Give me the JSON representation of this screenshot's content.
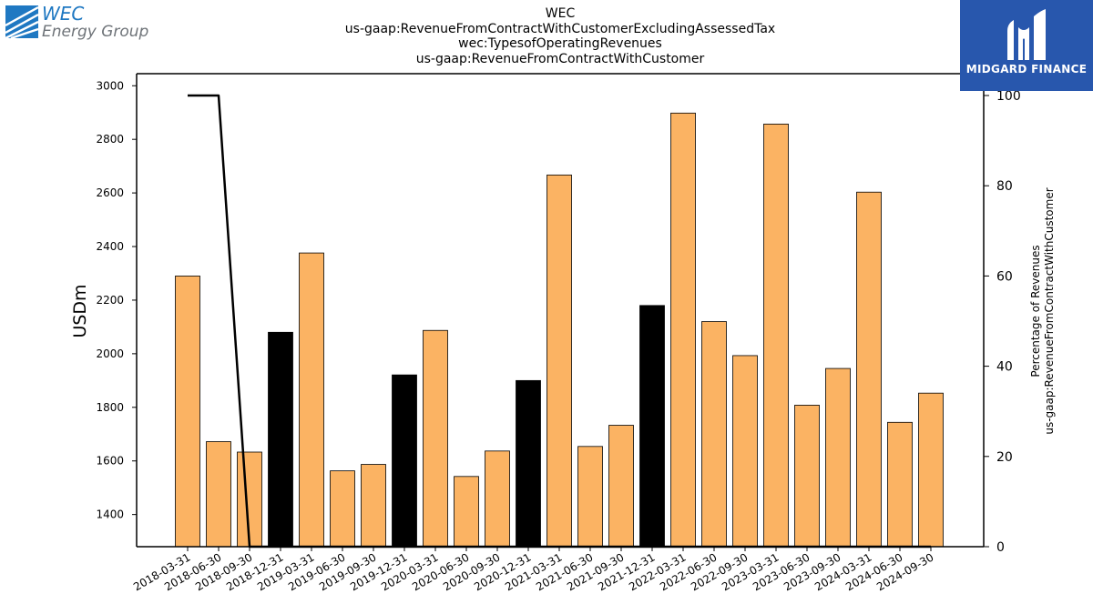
{
  "header": {
    "title_lines": [
      "WEC",
      "us-gaap:RevenueFromContractWithCustomerExcludingAssessedTax",
      "wec:TypesofOperatingRevenues",
      "us-gaap:RevenueFromContractWithCustomer"
    ]
  },
  "logo_left": {
    "line1": "WEC",
    "line2": "Energy Group",
    "mark_icon": "wec-energy-group-logo-icon",
    "color": "#1f78c2"
  },
  "logo_right": {
    "text": "MIDGARD FINANCE",
    "mark_icon": "midgard-finance-logo-icon",
    "background": "#2857ad"
  },
  "chart_data": {
    "type": "bar",
    "categories": [
      "2018-03-31",
      "2018-06-30",
      "2018-09-30",
      "2018-12-31",
      "2019-03-31",
      "2019-06-30",
      "2019-09-30",
      "2019-12-31",
      "2020-03-31",
      "2020-06-30",
      "2020-09-30",
      "2020-12-31",
      "2021-03-31",
      "2021-06-30",
      "2021-09-30",
      "2021-12-31",
      "2022-03-31",
      "2022-06-30",
      "2022-09-30",
      "2023-03-31",
      "2023-06-30",
      "2023-09-30",
      "2024-03-31",
      "2024-06-30",
      "2024-09-30"
    ],
    "values": [
      2290,
      1672,
      1633,
      2080,
      2376,
      1563,
      1587,
      1921,
      2087,
      1542,
      1637,
      1900,
      2667,
      1654,
      1733,
      2180,
      2898,
      2120,
      1993,
      2857,
      1808,
      1945,
      2603,
      1744,
      1853
    ],
    "highlight": [
      false,
      false,
      false,
      true,
      false,
      false,
      false,
      true,
      false,
      false,
      false,
      true,
      false,
      false,
      false,
      true,
      false,
      false,
      false,
      false,
      false,
      false,
      false,
      false,
      false
    ],
    "bar_color": "#fbb363",
    "highlight_color": "#000000",
    "ylabel": "USDm",
    "ylim": [
      1280,
      3045
    ],
    "yticks": [
      1400,
      1600,
      1800,
      2000,
      2200,
      2400,
      2600,
      2800,
      3000
    ],
    "secondary": {
      "ylabel_lines": [
        "Percentage of Revenues",
        "us-gaap:RevenueFromContractWithCustomer"
      ],
      "values": [
        100,
        100,
        0,
        0,
        0,
        0,
        0,
        0,
        0,
        0,
        0,
        0,
        0,
        0,
        0,
        0,
        0,
        0,
        0,
        0,
        0,
        0,
        0,
        0,
        0
      ],
      "ylim": [
        0,
        100
      ],
      "yticks": [
        0,
        20,
        40,
        60,
        80,
        100
      ],
      "color": "#000000"
    }
  }
}
